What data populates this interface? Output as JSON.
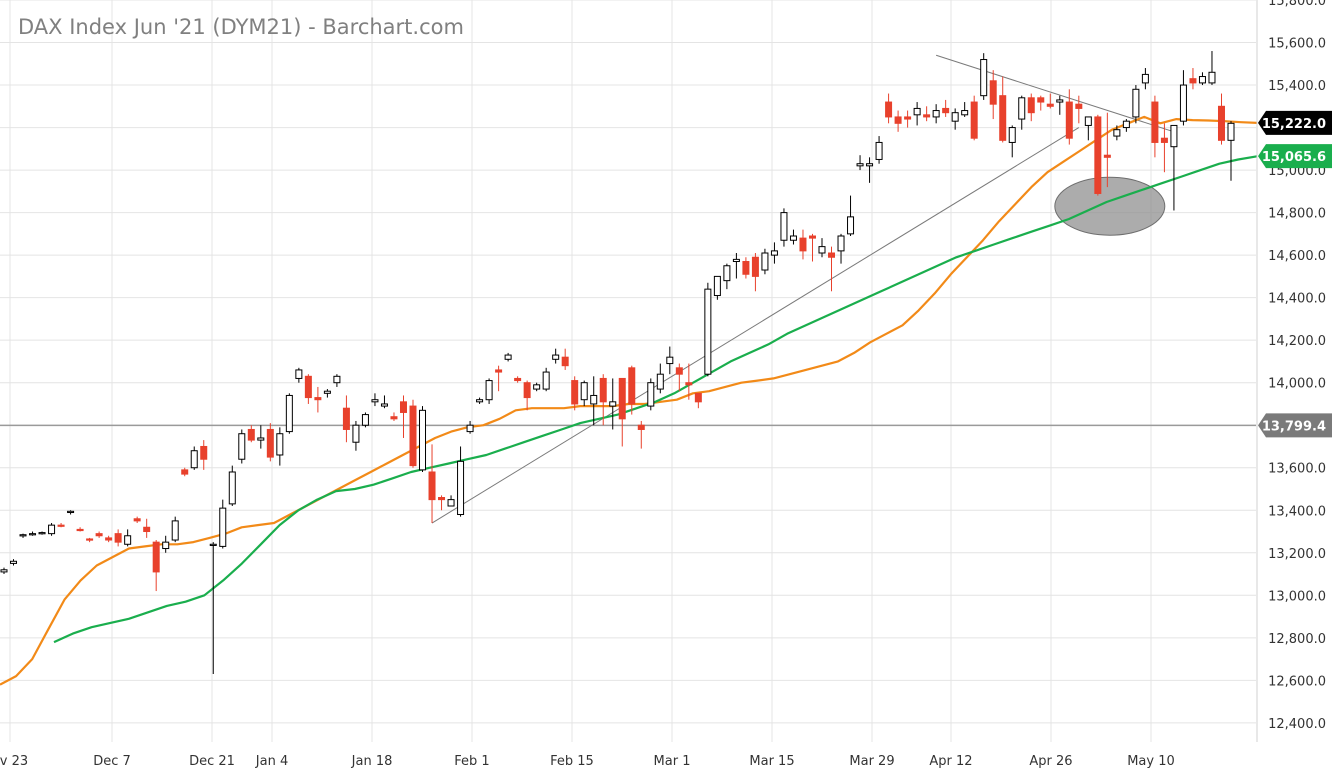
{
  "chart_data": {
    "type": "candlestick",
    "title": "DAX Index Jun '21 (DYM21) - Barchart.com",
    "x_tick_labels": [
      "ov 23",
      "Dec 7",
      "Dec 21",
      "Jan 4",
      "Jan 18",
      "Feb 1",
      "Feb 15",
      "Mar 1",
      "Mar 15",
      "Mar 29",
      "Apr 12",
      "Apr 26",
      "May 10"
    ],
    "y_tick_labels": [
      "15,800.0",
      "15,600.0",
      "15,400.0",
      "15,200.0",
      "15,000.0",
      "14,800.0",
      "14,600.0",
      "14,400.0",
      "14,200.0",
      "14,000.0",
      "13,800.0",
      "13,600.0",
      "13,400.0",
      "13,200.0",
      "13,000.0",
      "12,800.0",
      "12,600.0",
      "12,400.0"
    ],
    "ylim": [
      12310,
      15800
    ],
    "grid": true,
    "candle_colors": {
      "up": "#000000",
      "down": "#e8412c"
    },
    "ohlc": [
      [
        13110,
        13130,
        13100,
        13120
      ],
      [
        13150,
        13170,
        13140,
        13160
      ],
      [
        13280,
        13290,
        13270,
        13285
      ],
      [
        13290,
        13300,
        13280,
        13290
      ],
      [
        13290,
        13300,
        13285,
        13295
      ],
      [
        13290,
        13340,
        13280,
        13330
      ],
      [
        13330,
        13340,
        13320,
        13325
      ],
      [
        13390,
        13400,
        13380,
        13395
      ],
      [
        13310,
        13320,
        13300,
        13305
      ],
      [
        13265,
        13270,
        13250,
        13260
      ],
      [
        13290,
        13300,
        13270,
        13280
      ],
      [
        13270,
        13280,
        13250,
        13260
      ],
      [
        13290,
        13310,
        13230,
        13250
      ],
      [
        13240,
        13310,
        13230,
        13280
      ],
      [
        13360,
        13370,
        13340,
        13350
      ],
      [
        13320,
        13360,
        13270,
        13300
      ],
      [
        13250,
        13260,
        13020,
        13110
      ],
      [
        13220,
        13280,
        13200,
        13250
      ],
      [
        13260,
        13370,
        13250,
        13350
      ],
      [
        13590,
        13600,
        13560,
        13570
      ],
      [
        13600,
        13700,
        13590,
        13680
      ],
      [
        13700,
        13730,
        13590,
        13640
      ],
      [
        13240,
        13250,
        12630,
        13240
      ],
      [
        13230,
        13450,
        13220,
        13410
      ],
      [
        13430,
        13610,
        13420,
        13580
      ],
      [
        13640,
        13780,
        13620,
        13760
      ],
      [
        13780,
        13800,
        13720,
        13730
      ],
      [
        13730,
        13800,
        13690,
        13740
      ],
      [
        13780,
        13810,
        13630,
        13650
      ],
      [
        13660,
        13790,
        13610,
        13760
      ],
      [
        13770,
        13950,
        13760,
        13940
      ],
      [
        14020,
        14070,
        14000,
        14060
      ],
      [
        14030,
        14040,
        13900,
        13930
      ],
      [
        13930,
        13980,
        13860,
        13920
      ],
      [
        13950,
        13970,
        13930,
        13960
      ],
      [
        14000,
        14040,
        13980,
        14030
      ],
      [
        13880,
        13940,
        13720,
        13780
      ],
      [
        13720,
        13820,
        13680,
        13800
      ],
      [
        13800,
        13860,
        13790,
        13850
      ],
      [
        13910,
        13950,
        13890,
        13920
      ],
      [
        13890,
        13940,
        13880,
        13900
      ],
      [
        13840,
        13860,
        13820,
        13830
      ],
      [
        13910,
        13940,
        13740,
        13860
      ],
      [
        13890,
        13920,
        13600,
        13610
      ],
      [
        13590,
        13890,
        13580,
        13870
      ],
      [
        13580,
        13710,
        13340,
        13450
      ],
      [
        13460,
        13470,
        13400,
        13450
      ],
      [
        13420,
        13470,
        13420,
        13450
      ],
      [
        13380,
        13700,
        13370,
        13630
      ],
      [
        13770,
        13820,
        13760,
        13800
      ],
      [
        13910,
        13930,
        13900,
        13920
      ],
      [
        13920,
        14020,
        13900,
        14010
      ],
      [
        14060,
        14080,
        13960,
        14050
      ],
      [
        14110,
        14140,
        14100,
        14130
      ],
      [
        14020,
        14030,
        14000,
        14010
      ],
      [
        14000,
        14010,
        13870,
        13930
      ],
      [
        13970,
        14000,
        13960,
        13990
      ],
      [
        13970,
        14070,
        13960,
        14050
      ],
      [
        14110,
        14160,
        14090,
        14130
      ],
      [
        14120,
        14160,
        14060,
        14080
      ],
      [
        14010,
        14030,
        13870,
        13900
      ],
      [
        13920,
        14010,
        13890,
        14000
      ],
      [
        13900,
        14030,
        13800,
        13940
      ],
      [
        14020,
        14040,
        13800,
        13910
      ],
      [
        13890,
        14020,
        13780,
        13910
      ],
      [
        14020,
        14020,
        13700,
        13830
      ],
      [
        14070,
        14080,
        13850,
        13900
      ],
      [
        13800,
        13820,
        13690,
        13780
      ],
      [
        13890,
        14020,
        13870,
        14000
      ],
      [
        13970,
        14090,
        13950,
        14040
      ],
      [
        14090,
        14170,
        14040,
        14120
      ],
      [
        14070,
        14090,
        13960,
        14040
      ],
      [
        14000,
        14090,
        13920,
        13990
      ],
      [
        13950,
        13930,
        13880,
        13910
      ],
      [
        14040,
        14470,
        14030,
        14440
      ],
      [
        14410,
        14500,
        14390,
        14500
      ],
      [
        14480,
        14560,
        14440,
        14550
      ],
      [
        14570,
        14610,
        14490,
        14580
      ],
      [
        14570,
        14590,
        14490,
        14510
      ],
      [
        14590,
        14610,
        14430,
        14500
      ],
      [
        14530,
        14630,
        14510,
        14610
      ],
      [
        14600,
        14660,
        14560,
        14620
      ],
      [
        14670,
        14820,
        14640,
        14800
      ],
      [
        14670,
        14720,
        14650,
        14690
      ],
      [
        14680,
        14720,
        14580,
        14620
      ],
      [
        14690,
        14700,
        14570,
        14680
      ],
      [
        14610,
        14680,
        14590,
        14640
      ],
      [
        14610,
        14640,
        14430,
        14590
      ],
      [
        14620,
        14700,
        14560,
        14690
      ],
      [
        14700,
        14880,
        14690,
        14780
      ],
      [
        15020,
        15070,
        15000,
        15030
      ],
      [
        15020,
        15060,
        14940,
        15030
      ],
      [
        15050,
        15160,
        15030,
        15130
      ],
      [
        15320,
        15360,
        15220,
        15250
      ],
      [
        15250,
        15280,
        15180,
        15220
      ],
      [
        15250,
        15280,
        15200,
        15240
      ],
      [
        15260,
        15320,
        15210,
        15290
      ],
      [
        15260,
        15300,
        15230,
        15250
      ],
      [
        15250,
        15310,
        15220,
        15280
      ],
      [
        15290,
        15330,
        15250,
        15270
      ],
      [
        15230,
        15290,
        15190,
        15270
      ],
      [
        15260,
        15320,
        15250,
        15280
      ],
      [
        15320,
        15350,
        15140,
        15150
      ],
      [
        15350,
        15550,
        15330,
        15520
      ],
      [
        15420,
        15470,
        15240,
        15310
      ],
      [
        15350,
        15440,
        15130,
        15140
      ],
      [
        15130,
        15210,
        15060,
        15200
      ],
      [
        15240,
        15350,
        15190,
        15340
      ],
      [
        15340,
        15360,
        15230,
        15270
      ],
      [
        15340,
        15350,
        15280,
        15320
      ],
      [
        15310,
        15360,
        15290,
        15300
      ],
      [
        15320,
        15350,
        15260,
        15330
      ],
      [
        15320,
        15380,
        15120,
        15150
      ],
      [
        15310,
        15350,
        15220,
        15290
      ],
      [
        15210,
        15240,
        15140,
        15250
      ],
      [
        15250,
        15260,
        14880,
        14890
      ],
      [
        15070,
        15270,
        14920,
        15060
      ],
      [
        15160,
        15210,
        15140,
        15190
      ],
      [
        15200,
        15240,
        15180,
        15230
      ],
      [
        15250,
        15400,
        15220,
        15380
      ],
      [
        15410,
        15480,
        15380,
        15450
      ],
      [
        15320,
        15350,
        15060,
        15130
      ],
      [
        15150,
        15220,
        14990,
        15130
      ],
      [
        15110,
        15210,
        14810,
        15210
      ],
      [
        15230,
        15470,
        15210,
        15400
      ],
      [
        15430,
        15480,
        15380,
        15410
      ],
      [
        15410,
        15460,
        15400,
        15440
      ],
      [
        15410,
        15560,
        15400,
        15460
      ],
      [
        15300,
        15360,
        15120,
        15140
      ],
      [
        15140,
        15230,
        14950,
        15220
      ]
    ],
    "series": [
      {
        "name": "",
        "color": "#f28a18",
        "values": [
          12580,
          12620,
          12700,
          12840,
          12980,
          13070,
          13140,
          13180,
          13220,
          13230,
          13240,
          13240,
          13250,
          13270,
          13290,
          13320,
          13330,
          13340,
          13380,
          13420,
          13460,
          13500,
          13540,
          13580,
          13620,
          13660,
          13700,
          13740,
          13770,
          13790,
          13800,
          13830,
          13870,
          13880,
          13880,
          13880,
          13890,
          13890,
          13890,
          13900,
          13900,
          13910,
          13920,
          13950,
          13960,
          13980,
          14000,
          14010,
          14020,
          14040,
          14060,
          14080,
          14100,
          14140,
          14190,
          14230,
          14270,
          14340,
          14420,
          14510,
          14590,
          14670,
          14760,
          14840,
          14920,
          14990,
          15040,
          15090,
          15140,
          15190,
          15220,
          15250,
          15220,
          15240,
          15235,
          15233,
          15230,
          15225,
          15222
        ]
      },
      {
        "name": "",
        "color": "#1aae4d",
        "values": [
          12780,
          12820,
          12850,
          12870,
          12890,
          12920,
          12950,
          12970,
          13000,
          13070,
          13150,
          13240,
          13330,
          13400,
          13450,
          13490,
          13500,
          13520,
          13550,
          13580,
          13600,
          13620,
          13640,
          13660,
          13690,
          13720,
          13750,
          13780,
          13810,
          13830,
          13850,
          13880,
          13910,
          13950,
          14000,
          14050,
          14100,
          14140,
          14180,
          14230,
          14270,
          14310,
          14350,
          14390,
          14430,
          14470,
          14510,
          14550,
          14590,
          14620,
          14650,
          14680,
          14710,
          14740,
          14770,
          14810,
          14850,
          14880,
          14910,
          14940,
          14970,
          15000,
          15030,
          15050,
          15065
        ]
      }
    ],
    "trendlines": [
      {
        "from": [
          13340,
          13340
        ],
        "to": [
          15200,
          15200
        ]
      },
      {
        "from": [
          15540,
          15540
        ],
        "to": [
          15180,
          15180
        ]
      }
    ],
    "price_badges": [
      {
        "value": 15222.0,
        "label": "15,222.0",
        "color": "#000000"
      },
      {
        "value": 15065.6,
        "label": "15,065.6",
        "color": "#1aae4d"
      },
      {
        "value": 13799.4,
        "label": "13,799.4",
        "color": "#7a7a7a"
      }
    ],
    "highlight": {
      "center": [
        15870,
        14830
      ],
      "color": "#8c8c8c"
    }
  }
}
